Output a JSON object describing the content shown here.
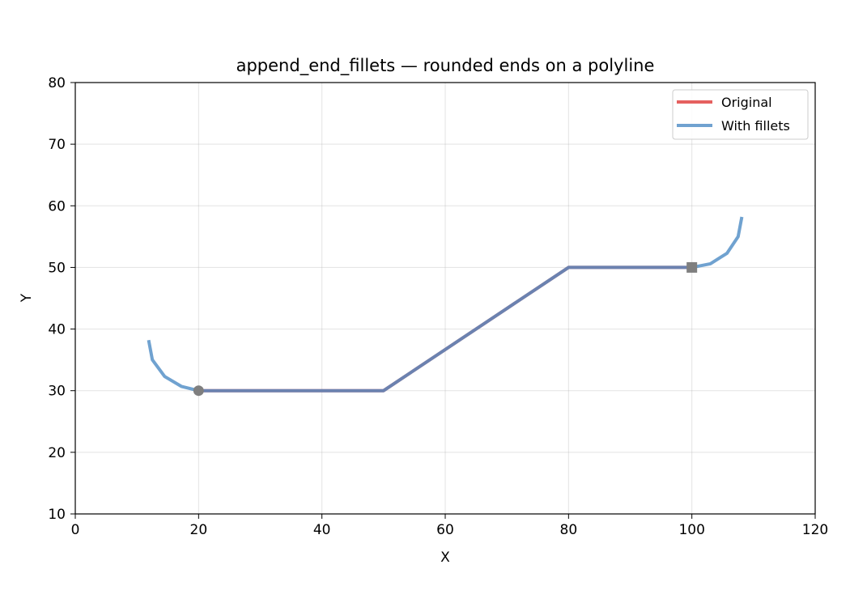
{
  "chart_data": {
    "type": "line",
    "title": "append_end_fillets — rounded ends on a polyline",
    "xlabel": "X",
    "ylabel": "Y",
    "xlim": [
      0,
      120
    ],
    "ylim": [
      10,
      80
    ],
    "xticks": [
      0,
      20,
      40,
      60,
      80,
      100,
      120
    ],
    "yticks": [
      10,
      20,
      30,
      40,
      50,
      60,
      70,
      80
    ],
    "grid": true,
    "legend_position": "top-right",
    "series": [
      {
        "name": "Original",
        "color": "#e45756",
        "x": [
          20,
          50,
          80,
          100
        ],
        "y": [
          30,
          30,
          50,
          50
        ]
      },
      {
        "name": "With fillets",
        "color": "#4c8bc4",
        "x": [
          11.9,
          12.5,
          14.5,
          17.2,
          20,
          50,
          80,
          100,
          103.0,
          105.7,
          107.5,
          108.1
        ],
        "y": [
          38.2,
          35.0,
          32.3,
          30.7,
          30,
          30,
          50,
          50,
          50.6,
          52.3,
          55.0,
          58.2
        ]
      }
    ],
    "markers": [
      {
        "shape": "circle",
        "color": "#7f7f7f",
        "x": 20,
        "y": 30
      },
      {
        "shape": "square",
        "color": "#7f7f7f",
        "x": 100,
        "y": 50
      }
    ]
  }
}
